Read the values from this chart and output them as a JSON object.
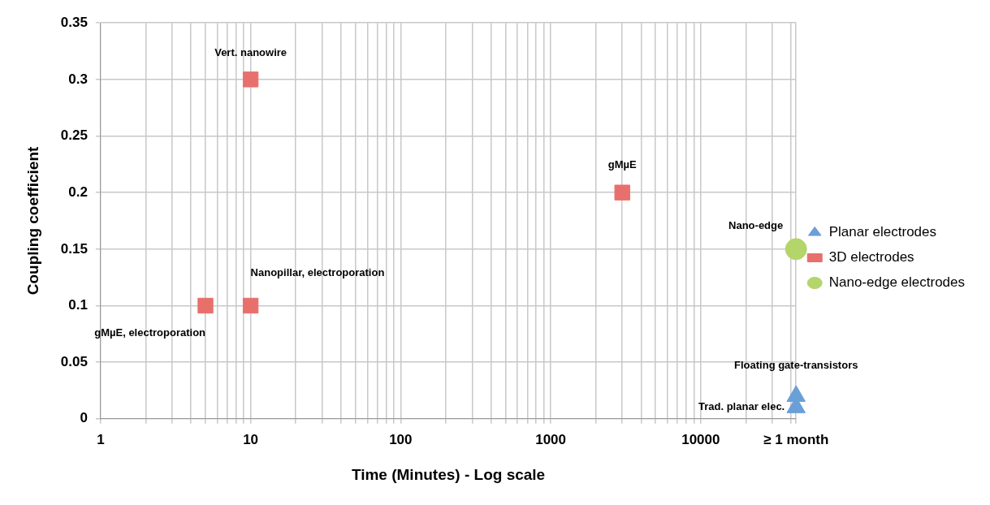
{
  "chart_data": {
    "type": "scatter",
    "xlabel": "Time (Minutes) - Log scale",
    "ylabel": "Coupling coefficient",
    "log": "x",
    "grid": true,
    "legend": "right",
    "xlim": [
      1,
      43200
    ],
    "ylim": [
      0,
      0.35
    ],
    "xticks": [
      1,
      {
        "value": 2,
        "label": null
      },
      {
        "value": 3,
        "label": null
      },
      {
        "value": 4,
        "label": null
      },
      {
        "value": 5,
        "label": null
      },
      {
        "value": 6,
        "label": null
      },
      {
        "value": 7,
        "label": null
      },
      {
        "value": 8,
        "label": null
      },
      {
        "value": 9,
        "label": null
      },
      10,
      {
        "value": 20,
        "label": null
      },
      {
        "value": 30,
        "label": null
      },
      {
        "value": 40,
        "label": null
      },
      {
        "value": 50,
        "label": null
      },
      {
        "value": 60,
        "label": null
      },
      {
        "value": 70,
        "label": null
      },
      {
        "value": 80,
        "label": null
      },
      {
        "value": 90,
        "label": null
      },
      100,
      {
        "value": 200,
        "label": null
      },
      {
        "value": 300,
        "label": null
      },
      {
        "value": 400,
        "label": null
      },
      {
        "value": 500,
        "label": null
      },
      {
        "value": 600,
        "label": null
      },
      {
        "value": 700,
        "label": null
      },
      {
        "value": 800,
        "label": null
      },
      {
        "value": 900,
        "label": null
      },
      1000,
      {
        "value": 2000,
        "label": null
      },
      {
        "value": 3000,
        "label": null
      },
      {
        "value": 4000,
        "label": null
      },
      {
        "value": 5000,
        "label": null
      },
      {
        "value": 6000,
        "label": null
      },
      {
        "value": 7000,
        "label": null
      },
      {
        "value": 8000,
        "label": null
      },
      {
        "value": 9000,
        "label": null
      },
      10000,
      {
        "value": 20000,
        "label": null
      },
      {
        "value": 30000,
        "label": null
      },
      {
        "value": 40000,
        "label": null
      },
      {
        "value": 43200,
        "label": "≥ 1 month"
      }
    ],
    "yticks": [
      0,
      0.05,
      0.1,
      0.15,
      0.2,
      0.25,
      0.3,
      0.35
    ],
    "series": [
      {
        "name": "Planar electrodes",
        "color": "#6a9fd8",
        "marker": "triangle",
        "x": [
          43200,
          43200
        ],
        "values": [
          0.01,
          0.02
        ]
      },
      {
        "name": "3D electrodes",
        "color": "#e8706c",
        "marker": "square",
        "x": [
          10,
          5,
          10,
          3000
        ],
        "values": [
          0.3,
          0.1,
          0.1,
          0.2
        ]
      },
      {
        "name": "Nano-edge electrodes",
        "color": "#b3d56a",
        "marker": "circle",
        "x": [
          43200
        ],
        "values": [
          0.15
        ]
      }
    ],
    "annotations": [
      {
        "text": "Vert. nanowire",
        "x": 10,
        "y": 0.3
      },
      {
        "text": "Nanopillar, electroporation",
        "x": 10,
        "y": 0.1
      },
      {
        "text": "gMµE, electroporation",
        "x": 5,
        "y": 0.1
      },
      {
        "text": "gMµE",
        "x": 3000,
        "y": 0.2
      },
      {
        "text": "Nano-edge",
        "x": 43200,
        "y": 0.15
      },
      {
        "text": "Floating gate-transistors",
        "x": 43200,
        "y": 0.02
      },
      {
        "text": "Trad. planar elec.",
        "x": 43200,
        "y": 0.01
      }
    ]
  }
}
